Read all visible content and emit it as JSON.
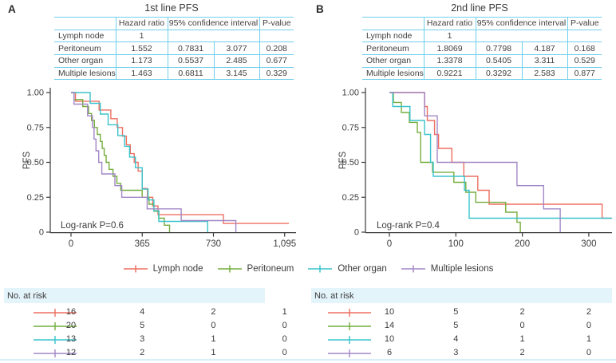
{
  "figure": {
    "panels": [
      {
        "label": "A",
        "title": "1st line PFS",
        "table": {
          "col1": "Hazard ratio",
          "col2": "95% confidence interval",
          "col3": "P-value",
          "rows": [
            {
              "name": "Lymph node",
              "hr": "1",
              "lo": "",
              "hi": "",
              "p": ""
            },
            {
              "name": "Peritoneum",
              "hr": "1.552",
              "lo": "0.7831",
              "hi": "3.077",
              "p": "0.208"
            },
            {
              "name": "Other organ",
              "hr": "1.173",
              "lo": "0.5537",
              "hi": "2.485",
              "p": "0.677"
            },
            {
              "name": "Multiple lesions",
              "hr": "1.463",
              "lo": "0.6811",
              "hi": "3.145",
              "p": "0.329"
            }
          ]
        }
      },
      {
        "label": "B",
        "title": "2nd line PFS",
        "table": {
          "col1": "Hazard ratio",
          "col2": "95% confidence interval",
          "col3": "P-value",
          "rows": [
            {
              "name": "Lymph node",
              "hr": "1",
              "lo": "",
              "hi": "",
              "p": ""
            },
            {
              "name": "Peritoneum",
              "hr": "1.8069",
              "lo": "0.7798",
              "hi": "4.187",
              "p": "0.168"
            },
            {
              "name": "Other organ",
              "hr": "1.3378",
              "lo": "0.5405",
              "hi": "3.311",
              "p": "0.529"
            },
            {
              "name": "Multiple lesions",
              "hr": "0.9221",
              "lo": "0.3292",
              "hi": "2.583",
              "p": "0.877"
            }
          ]
        }
      }
    ],
    "legend": {
      "items": [
        {
          "label": "Lymph node",
          "color": "#ed6f61"
        },
        {
          "label": "Peritoneum",
          "color": "#74ad3d"
        },
        {
          "label": "Other organ",
          "color": "#38c3cc"
        },
        {
          "label": "Multiple lesions",
          "color": "#a287c6"
        }
      ]
    },
    "colors": {
      "table_border": "#6fcfec",
      "risk_band_bg": "#e4f4fb",
      "bottom_rule": "#d9eef8",
      "axis": "#3a3a3a",
      "text": "#3d3d3d"
    }
  },
  "chart_data": [
    {
      "type": "line",
      "subtype": "kaplan_meier_step",
      "title": "1st line PFS",
      "xlabel": "",
      "ylabel": "PFS",
      "xlim": [
        0,
        1130
      ],
      "ylim": [
        0,
        1
      ],
      "xticks": [
        0,
        365,
        730,
        1095
      ],
      "xtick_labels": [
        "0",
        "365",
        "730",
        "1,095"
      ],
      "yticks": [
        0,
        0.25,
        0.5,
        0.75,
        1
      ],
      "ytick_labels": [
        "0",
        "0.25",
        "0.50",
        "0.75",
        "1.00"
      ],
      "annotation": "Log-rank P=0.6",
      "grid": false,
      "legend_position": "bottom",
      "series": [
        {
          "name": "Lymph node",
          "color": "#ed6f61",
          "steps": [
            [
              0,
              1
            ],
            [
              23,
              0.9375
            ],
            [
              144,
              0.875
            ],
            [
              204,
              0.8125
            ],
            [
              237,
              0.75
            ],
            [
              264,
              0.6875
            ],
            [
              284,
              0.625
            ],
            [
              304,
              0.5625
            ],
            [
              324,
              0.5
            ],
            [
              344,
              0.4375
            ],
            [
              365,
              0.3125
            ],
            [
              392,
              0.25
            ],
            [
              419,
              0.1875
            ],
            [
              446,
              0.125
            ],
            [
              781,
              0.0625
            ],
            [
              1117,
              0.0625
            ]
          ]
        },
        {
          "name": "Peritoneum",
          "color": "#74ad3d",
          "steps": [
            [
              0,
              1
            ],
            [
              15,
              0.95
            ],
            [
              60,
              0.9
            ],
            [
              90,
              0.85
            ],
            [
              105,
              0.8
            ],
            [
              120,
              0.75
            ],
            [
              135,
              0.7
            ],
            [
              150,
              0.65
            ],
            [
              160,
              0.6
            ],
            [
              170,
              0.55
            ],
            [
              180,
              0.5
            ],
            [
              195,
              0.45
            ],
            [
              215,
              0.4
            ],
            [
              235,
              0.35
            ],
            [
              255,
              0.3
            ],
            [
              365,
              0.25
            ],
            [
              400,
              0.2
            ],
            [
              425,
              0.15
            ],
            [
              450,
              0.1
            ],
            [
              478,
              0.05
            ],
            [
              505,
              0
            ]
          ]
        },
        {
          "name": "Other organ",
          "color": "#38c3cc",
          "steps": [
            [
              0,
              1
            ],
            [
              98,
              0.923
            ],
            [
              150,
              0.846
            ],
            [
              190,
              0.769
            ],
            [
              240,
              0.692
            ],
            [
              275,
              0.615
            ],
            [
              300,
              0.538
            ],
            [
              330,
              0.462
            ],
            [
              365,
              0.308
            ],
            [
              395,
              0.231
            ],
            [
              425,
              0.154
            ],
            [
              450,
              0.077
            ],
            [
              700,
              0
            ]
          ]
        },
        {
          "name": "Multiple lesions",
          "color": "#a287c6",
          "steps": [
            [
              0,
              1
            ],
            [
              15,
              0.917
            ],
            [
              85,
              0.833
            ],
            [
              110,
              0.75
            ],
            [
              118,
              0.667
            ],
            [
              128,
              0.583
            ],
            [
              142,
              0.5
            ],
            [
              158,
              0.417
            ],
            [
              225,
              0.333
            ],
            [
              260,
              0.25
            ],
            [
              390,
              0.167
            ],
            [
              565,
              0.083
            ],
            [
              845,
              0
            ]
          ]
        }
      ],
      "risk_table": {
        "label": "No. at risk",
        "times": [
          0,
          365,
          730,
          1095
        ],
        "counts": [
          [
            16,
            4,
            2,
            1
          ],
          [
            20,
            5,
            0,
            0
          ],
          [
            13,
            3,
            1,
            0
          ],
          [
            12,
            2,
            1,
            0
          ]
        ]
      }
    },
    {
      "type": "line",
      "subtype": "kaplan_meier_step",
      "title": "2nd line PFS",
      "xlabel": "",
      "ylabel": "PFS",
      "xlim": [
        0,
        340
      ],
      "ylim": [
        0,
        1
      ],
      "xticks": [
        0,
        100,
        200,
        300
      ],
      "xtick_labels": [
        "0",
        "100",
        "200",
        "300"
      ],
      "yticks": [
        0,
        0.25,
        0.5,
        0.75,
        1
      ],
      "ytick_labels": [
        "0",
        "0.25",
        "0.50",
        "0.75",
        "1.00"
      ],
      "annotation": "Log-rank P=0.4",
      "grid": false,
      "legend_position": "bottom",
      "series": [
        {
          "name": "Lymph node",
          "color": "#ed6f61",
          "steps": [
            [
              0,
              1
            ],
            [
              53,
              0.9
            ],
            [
              57,
              0.8
            ],
            [
              68,
              0.7
            ],
            [
              74,
              0.6
            ],
            [
              94,
              0.5
            ],
            [
              112,
              0.4
            ],
            [
              133,
              0.3
            ],
            [
              150,
              0.2
            ],
            [
              320,
              0.1
            ],
            [
              333,
              0.1
            ]
          ]
        },
        {
          "name": "Peritoneum",
          "color": "#74ad3d",
          "steps": [
            [
              0,
              1
            ],
            [
              6,
              0.929
            ],
            [
              18,
              0.857
            ],
            [
              30,
              0.786
            ],
            [
              42,
              0.714
            ],
            [
              47,
              0.5
            ],
            [
              65,
              0.429
            ],
            [
              97,
              0.357
            ],
            [
              115,
              0.286
            ],
            [
              130,
              0.214
            ],
            [
              175,
              0.143
            ],
            [
              192,
              0.071
            ],
            [
              197,
              0
            ]
          ]
        },
        {
          "name": "Other organ",
          "color": "#38c3cc",
          "steps": [
            [
              0,
              1
            ],
            [
              5,
              0.9
            ],
            [
              31,
              0.8
            ],
            [
              53,
              0.7
            ],
            [
              62,
              0.5
            ],
            [
              66,
              0.4
            ],
            [
              113,
              0.3
            ],
            [
              120,
              0.1
            ],
            [
              335,
              0.1
            ]
          ]
        },
        {
          "name": "Multiple lesions",
          "color": "#a287c6",
          "steps": [
            [
              0,
              1
            ],
            [
              53,
              0.833
            ],
            [
              72,
              0.5
            ],
            [
              192,
              0.333
            ],
            [
              232,
              0.167
            ],
            [
              257,
              0
            ]
          ]
        }
      ],
      "risk_table": {
        "label": "No. at risk",
        "times": [
          0,
          100,
          200,
          300
        ],
        "counts": [
          [
            10,
            5,
            2,
            2
          ],
          [
            14,
            5,
            0,
            0
          ],
          [
            10,
            4,
            1,
            1
          ],
          [
            6,
            3,
            2,
            0
          ]
        ]
      }
    }
  ]
}
